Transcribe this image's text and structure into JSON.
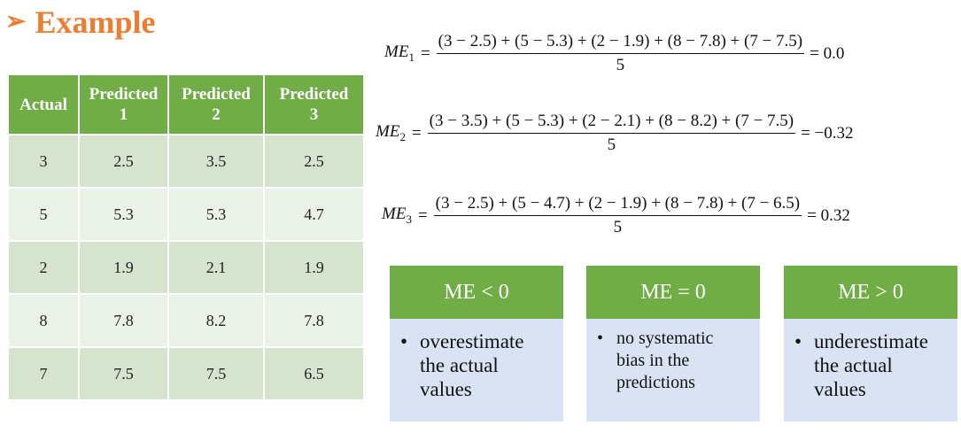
{
  "title": {
    "arrow": "➢",
    "text": "Example"
  },
  "table": {
    "headers": [
      {
        "line1": "Actual",
        "line2": ""
      },
      {
        "line1": "Predicted",
        "line2": "1"
      },
      {
        "line1": "Predicted",
        "line2": "2"
      },
      {
        "line1": "Predicted",
        "line2": "3"
      }
    ],
    "rows": [
      [
        "3",
        "2.5",
        "3.5",
        "2.5"
      ],
      [
        "5",
        "5.3",
        "5.3",
        "4.7"
      ],
      [
        "2",
        "1.9",
        "2.1",
        "1.9"
      ],
      [
        "8",
        "7.8",
        "8.2",
        "7.8"
      ],
      [
        "7",
        "7.5",
        "7.5",
        "6.5"
      ]
    ]
  },
  "formulas": [
    {
      "lhs": "ME",
      "sub": "1",
      "numerator": "(3 − 2.5) + (5 − 5.3) + (2 − 1.9) + (8 − 7.8) + (7 − 7.5)",
      "denominator": "5",
      "result": "= 0.0"
    },
    {
      "lhs": "ME",
      "sub": "2",
      "numerator": "(3 − 3.5) + (5 − 5.3) + (2 − 2.1) + (8 − 8.2) + (7 − 7.5)",
      "denominator": "5",
      "result": "= −0.32"
    },
    {
      "lhs": "ME",
      "sub": "3",
      "numerator": "(3 − 2.5) + (5 − 4.7) + (2 − 1.9) + (8 − 7.8) + (7 − 6.5)",
      "denominator": "5",
      "result": "= 0.32"
    }
  ],
  "equals_sign": "=",
  "boxes": [
    {
      "header": "ME < 0",
      "bullet": "•",
      "text_lines": [
        "overestimate",
        "the actual",
        "values"
      ]
    },
    {
      "header": "ME = 0",
      "bullet": "•",
      "text_lines": [
        "no systematic",
        "bias in the",
        "predictions"
      ]
    },
    {
      "header": "ME > 0",
      "bullet": "•",
      "text_lines": [
        "underestimate",
        "the actual",
        "values"
      ]
    }
  ],
  "colors": {
    "title": "#ED7D31",
    "green": "#70AD47",
    "row_dark": "#D5E3CF",
    "row_light": "#EAF1E7",
    "box_bg": "#DAE3F3"
  }
}
